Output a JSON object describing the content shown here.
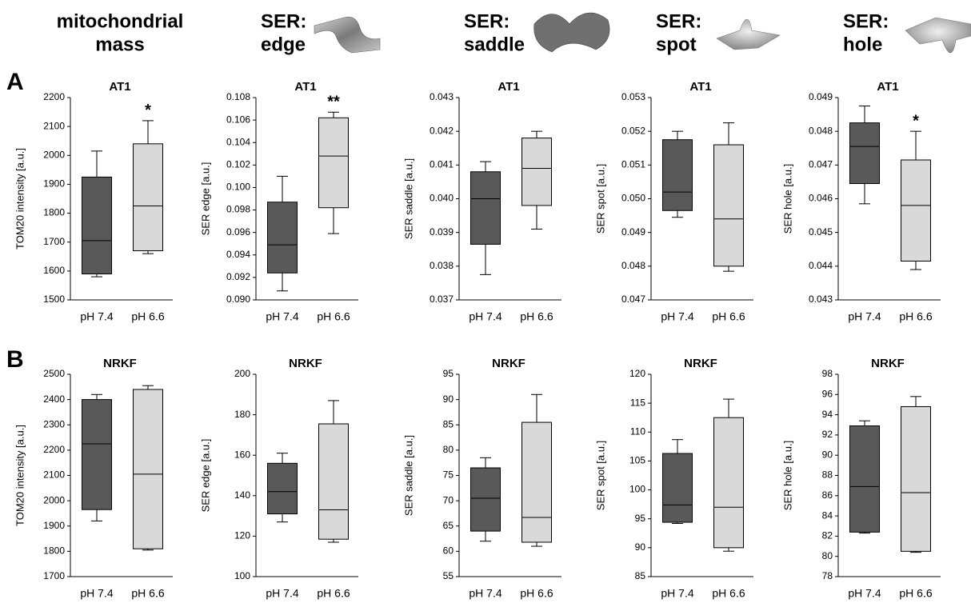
{
  "column_headers": [
    [
      "mitochondrial",
      "mass"
    ],
    [
      "SER:",
      "edge"
    ],
    [
      "SER:",
      "saddle"
    ],
    [
      "SER:",
      "spot"
    ],
    [
      "SER:",
      "hole"
    ]
  ],
  "panel_labels": [
    "A",
    "B"
  ],
  "chart_data": [
    {
      "type": "box",
      "title": "AT1",
      "y_label": "TOM20 intensity  [a.u.]",
      "categories": [
        "pH 7.4",
        "pH 6.6"
      ],
      "boxes": [
        {
          "whisker_low": 1580,
          "q1": 1590,
          "median": 1705,
          "q3": 1925,
          "whisker_high": 2015,
          "color": "#595959"
        },
        {
          "whisker_low": 1660,
          "q1": 1670,
          "median": 1825,
          "q3": 2040,
          "whisker_high": 2120,
          "color": "#d9d9d9"
        }
      ],
      "significance": [
        null,
        "*"
      ],
      "ylim": [
        1500,
        2200
      ],
      "yticks": [
        1500,
        1600,
        1700,
        1800,
        1900,
        2000,
        2100,
        2200
      ]
    },
    {
      "type": "box",
      "title": "AT1",
      "y_label": "SER edge  [a.u.]",
      "categories": [
        "pH 7.4",
        "pH 6.6"
      ],
      "boxes": [
        {
          "whisker_low": 0.0908,
          "q1": 0.0924,
          "median": 0.0949,
          "q3": 0.0987,
          "whisker_high": 0.101,
          "color": "#595959"
        },
        {
          "whisker_low": 0.0959,
          "q1": 0.0982,
          "median": 0.1028,
          "q3": 0.1062,
          "whisker_high": 0.1067,
          "color": "#d9d9d9"
        }
      ],
      "significance": [
        null,
        "**"
      ],
      "ylim": [
        0.09,
        0.108
      ],
      "yticks": [
        {
          "value": 0.09,
          "label": "0.090"
        },
        0.092,
        0.094,
        0.096,
        0.098,
        {
          "value": 0.1,
          "label": "0.100"
        },
        0.102,
        0.104,
        0.106,
        0.108
      ]
    },
    {
      "type": "box",
      "title": "AT1",
      "y_label": "SER saddle  [a.u.]",
      "categories": [
        "pH 7.4",
        "pH 6.6"
      ],
      "boxes": [
        {
          "whisker_low": 0.03775,
          "q1": 0.03865,
          "median": 0.04,
          "q3": 0.0408,
          "whisker_high": 0.0411,
          "color": "#595959"
        },
        {
          "whisker_low": 0.0391,
          "q1": 0.0398,
          "median": 0.0409,
          "q3": 0.0418,
          "whisker_high": 0.042,
          "color": "#d9d9d9"
        }
      ],
      "ylim": [
        0.037,
        0.043
      ],
      "yticks": [
        0.037,
        0.038,
        0.039,
        {
          "value": 0.04,
          "label": "0.040"
        },
        0.041,
        0.042,
        0.043
      ]
    },
    {
      "type": "box",
      "title": "AT1",
      "y_label": "SER spot  [a.u.]",
      "categories": [
        "pH 7.4",
        "pH 6.6"
      ],
      "boxes": [
        {
          "whisker_low": 0.04945,
          "q1": 0.04965,
          "median": 0.0502,
          "q3": 0.05175,
          "whisker_high": 0.052,
          "color": "#595959"
        },
        {
          "whisker_low": 0.04785,
          "q1": 0.048,
          "median": 0.0494,
          "q3": 0.0516,
          "whisker_high": 0.05225,
          "color": "#d9d9d9"
        }
      ],
      "ylim": [
        0.047,
        0.053
      ],
      "yticks": [
        0.047,
        0.048,
        0.049,
        {
          "value": 0.05,
          "label": "0.050"
        },
        0.051,
        0.052,
        0.053
      ]
    },
    {
      "type": "box",
      "title": "AT1",
      "y_label": "SER hole  [a.u.]",
      "categories": [
        "pH 7.4",
        "pH 6.6"
      ],
      "boxes": [
        {
          "whisker_low": 0.04585,
          "q1": 0.04645,
          "median": 0.04755,
          "q3": 0.04825,
          "whisker_high": 0.04875,
          "color": "#595959"
        },
        {
          "whisker_low": 0.0439,
          "q1": 0.04415,
          "median": 0.0458,
          "q3": 0.04715,
          "whisker_high": 0.048,
          "color": "#d9d9d9"
        }
      ],
      "significance": [
        null,
        "*"
      ],
      "ylim": [
        0.043,
        0.049
      ],
      "yticks": [
        0.043,
        0.044,
        0.045,
        0.046,
        0.047,
        0.048,
        0.049
      ]
    },
    {
      "type": "box",
      "title": "NRKF",
      "y_label": "TOM20 intensity  [a.u.]",
      "categories": [
        "pH 7.4",
        "pH 6.6"
      ],
      "boxes": [
        {
          "whisker_low": 1920,
          "q1": 1965,
          "median": 2225,
          "q3": 2400,
          "whisker_high": 2420,
          "color": "#595959"
        },
        {
          "whisker_low": 1805,
          "q1": 1810,
          "median": 2105,
          "q3": 2440,
          "whisker_high": 2455,
          "color": "#d9d9d9"
        }
      ],
      "ylim": [
        1700,
        2500
      ],
      "yticks": [
        1700,
        1800,
        1900,
        2000,
        2100,
        2200,
        2300,
        2400,
        2500
      ]
    },
    {
      "type": "box",
      "title": "NRKF",
      "y_label": "SER edge  [a.u.]",
      "categories": [
        "pH 7.4",
        "pH 6.6"
      ],
      "boxes": [
        {
          "whisker_low": 127,
          "q1": 131,
          "median": 142,
          "q3": 156,
          "whisker_high": 161,
          "color": "#595959"
        },
        {
          "whisker_low": 117,
          "q1": 118.5,
          "median": 133,
          "q3": 175.5,
          "whisker_high": 187,
          "color": "#d9d9d9"
        }
      ],
      "ylim": [
        100,
        200
      ],
      "yticks": [
        100,
        120,
        140,
        160,
        180,
        200
      ]
    },
    {
      "type": "box",
      "title": "NRKF",
      "y_label": "SER saddle  [a.u.]",
      "categories": [
        "pH 7.4",
        "pH 6.6"
      ],
      "boxes": [
        {
          "whisker_low": 62,
          "q1": 64,
          "median": 70.5,
          "q3": 76.5,
          "whisker_high": 78.5,
          "color": "#595959"
        },
        {
          "whisker_low": 61,
          "q1": 61.8,
          "median": 66.7,
          "q3": 85.5,
          "whisker_high": 91,
          "color": "#d9d9d9"
        }
      ],
      "ylim": [
        55,
        95
      ],
      "yticks": [
        55,
        60,
        65,
        70,
        75,
        80,
        85,
        90,
        95
      ]
    },
    {
      "type": "box",
      "title": "NRKF",
      "y_label": "SER spot  [a.u.]",
      "categories": [
        "pH 7.4",
        "pH 6.6"
      ],
      "boxes": [
        {
          "whisker_low": 94.2,
          "q1": 94.4,
          "median": 97.4,
          "q3": 106.3,
          "whisker_high": 108.7,
          "color": "#595959"
        },
        {
          "whisker_low": 89.4,
          "q1": 90,
          "median": 97,
          "q3": 112.5,
          "whisker_high": 115.7,
          "color": "#d9d9d9"
        }
      ],
      "ylim": [
        85,
        120
      ],
      "yticks": [
        85,
        90,
        95,
        100,
        105,
        110,
        115,
        120
      ]
    },
    {
      "type": "box",
      "title": "NRKF",
      "y_label": "SER hole  [a.u.]",
      "categories": [
        "pH 7.4",
        "pH 6.6"
      ],
      "boxes": [
        {
          "whisker_low": 82.3,
          "q1": 82.4,
          "median": 86.9,
          "q3": 92.9,
          "whisker_high": 93.4,
          "color": "#595959"
        },
        {
          "whisker_low": 80.4,
          "q1": 80.5,
          "median": 86.3,
          "q3": 94.8,
          "whisker_high": 95.8,
          "color": "#d9d9d9"
        }
      ],
      "ylim": [
        78,
        98
      ],
      "yticks": [
        78,
        80,
        82,
        84,
        86,
        88,
        90,
        92,
        94,
        96,
        98
      ]
    }
  ]
}
